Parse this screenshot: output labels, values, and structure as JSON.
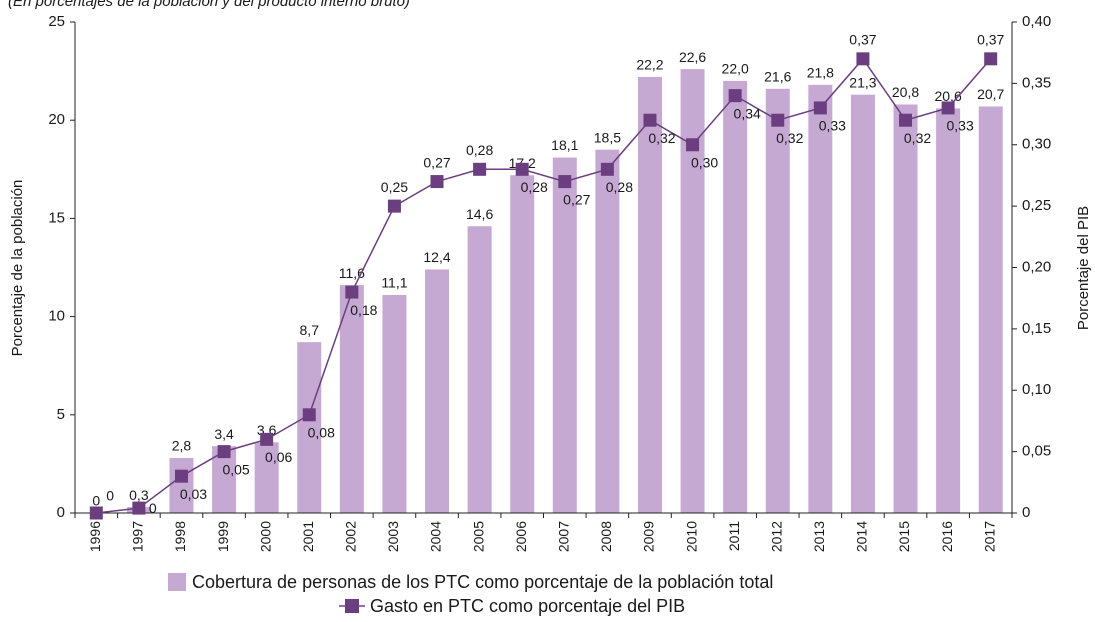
{
  "chart_data": {
    "type": "bar_line",
    "subtitle": "(En porcentajes de la población y del producto interno bruto)",
    "y_label": "Porcentaje de la población",
    "y2_label": "Porcentaje del PIB",
    "categories": [
      "1996",
      "1997",
      "1998",
      "1999",
      "2000",
      "2001",
      "2002",
      "2003",
      "2004",
      "2005",
      "2006",
      "2007",
      "2008",
      "2009",
      "2010",
      "2011",
      "2012",
      "2013",
      "2014",
      "2015",
      "2016",
      "2017"
    ],
    "series": [
      {
        "name": "Cobertura de personas de los PTC como porcentaje de la población total",
        "color": "#c6a9d3",
        "kind": "bar",
        "values": [
          0,
          0.3,
          2.8,
          3.4,
          3.6,
          8.7,
          11.6,
          11.1,
          12.4,
          14.6,
          17.2,
          18.1,
          18.5,
          22.2,
          22.6,
          22.0,
          21.6,
          21.8,
          21.3,
          20.8,
          20.6,
          20.7
        ],
        "value_labels": [
          "0",
          "0,3",
          "2,8",
          "3,4",
          "3,6",
          "8,7",
          "11,6",
          "11,1",
          "12,4",
          "14,6",
          "17,2",
          "18,1",
          "18,5",
          "22,2",
          "22,6",
          "22,0",
          "21,6",
          "21,8",
          "21,3",
          "20,8",
          "20,6",
          "20,7"
        ]
      },
      {
        "name": "Gasto en PTC como porcentaje del PIB",
        "color": "#6b3f7f",
        "kind": "line",
        "axis": "y2",
        "values": [
          0,
          0.004,
          0.03,
          0.05,
          0.06,
          0.08,
          0.18,
          0.25,
          0.27,
          0.28,
          0.28,
          0.27,
          0.28,
          0.32,
          0.3,
          0.34,
          0.32,
          0.33,
          0.37,
          0.32,
          0.33,
          0.37
        ],
        "value_labels": [
          "0",
          "0",
          "0,03",
          "0,05",
          "0,06",
          "0,08",
          "0,18",
          "0,25",
          "0,27",
          "0,28",
          "0,28",
          "0,27",
          "0,28",
          "0,32",
          "0,30",
          "0,34",
          "0,32",
          "0,33",
          "0,37",
          "0,32",
          "0,33",
          "0,37"
        ]
      }
    ],
    "ylim": [
      0,
      25
    ],
    "yticks": [
      0,
      5,
      10,
      15,
      20,
      25
    ],
    "y2lim": [
      0,
      0.4
    ],
    "y2ticks": [
      0,
      {
        "value": 0.05,
        "label": "0,05"
      },
      {
        "value": 0.1,
        "label": "0,10"
      },
      {
        "value": 0.15,
        "label": "0,15"
      },
      {
        "value": 0.2,
        "label": "0,20"
      },
      {
        "value": 0.25,
        "label": "0,25"
      },
      {
        "value": 0.3,
        "label": "0,30"
      },
      {
        "value": 0.35,
        "label": "0,35"
      },
      {
        "value": 0.4,
        "label": "0,40"
      }
    ]
  }
}
